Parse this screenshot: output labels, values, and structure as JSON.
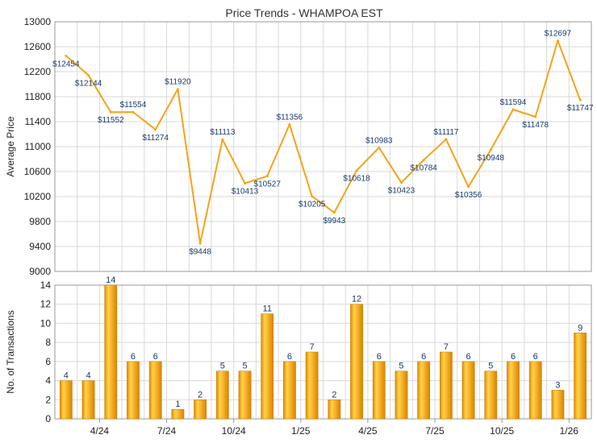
{
  "chart_data": [
    {
      "type": "line",
      "title": "Price Trends - WHAMPOA EST",
      "ylabel": "Average Price",
      "xlabel": "",
      "ylim": [
        9000,
        13000
      ],
      "yticks": [
        9000,
        9400,
        9800,
        10200,
        10600,
        11000,
        11400,
        11800,
        12200,
        12600,
        13000
      ],
      "value_prefix": "$",
      "series": [
        {
          "name": "Average Price",
          "color": "#f5a31a",
          "values": [
            12454,
            12144,
            11552,
            11554,
            11274,
            11920,
            9448,
            11113,
            10413,
            10527,
            11356,
            10205,
            9943,
            10618,
            10983,
            10423,
            10784,
            11117,
            10356,
            10948,
            11594,
            11478,
            12697,
            11747
          ]
        }
      ]
    },
    {
      "type": "bar",
      "ylabel": "No. of Transactions",
      "xlabel": "",
      "ylim": [
        0,
        14
      ],
      "yticks": [
        0,
        2,
        4,
        6,
        8,
        10,
        12,
        14
      ],
      "categories_count": 24,
      "xtick_labels": [
        "4/24",
        "7/24",
        "10/24",
        "1/25",
        "4/25",
        "7/25",
        "10/25",
        "1/26"
      ],
      "xtick_after_index": [
        1,
        4,
        7,
        10,
        13,
        16,
        19,
        22
      ],
      "series": [
        {
          "name": "No. of Transactions",
          "color": "#f5a31a",
          "values": [
            4,
            4,
            14,
            6,
            6,
            1,
            2,
            5,
            5,
            11,
            6,
            7,
            2,
            12,
            6,
            5,
            6,
            7,
            6,
            5,
            6,
            6,
            3,
            9
          ]
        }
      ]
    }
  ]
}
